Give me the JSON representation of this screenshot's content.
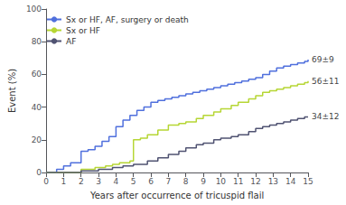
{
  "chart_data": {
    "type": "step",
    "xlabel": "Years after occurrence of tricuspid flail",
    "ylabel": "Event (%)",
    "xlim": [
      0,
      15
    ],
    "ylim": [
      0,
      100
    ],
    "xticks": [
      0,
      1,
      2,
      3,
      4,
      5,
      6,
      7,
      8,
      9,
      10,
      11,
      12,
      13,
      14,
      15
    ],
    "yticks": [
      0,
      20,
      40,
      60,
      80,
      100
    ],
    "grid": false,
    "legend": "upper left",
    "series": [
      {
        "name": "Sx or HF, AF, surgery or death",
        "x": [
          0,
          0.6,
          1.0,
          1.4,
          2.0,
          2.4,
          2.8,
          3.2,
          3.6,
          4.0,
          4.4,
          4.8,
          5.2,
          5.6,
          6.0,
          6.4,
          6.8,
          7.2,
          7.6,
          8.0,
          8.4,
          8.8,
          9.2,
          9.6,
          10.0,
          10.4,
          10.8,
          11.2,
          11.6,
          12.0,
          12.4,
          12.8,
          13.2,
          13.6,
          14.0,
          14.4,
          14.8,
          15.0
        ],
        "values": [
          0,
          2,
          4,
          6,
          13,
          14,
          16,
          19,
          22,
          28,
          32,
          35,
          38,
          40,
          43,
          44,
          45,
          46,
          47,
          48,
          49,
          50,
          51,
          52,
          53,
          54,
          55,
          56,
          57,
          58,
          60,
          62,
          64,
          65,
          66,
          67,
          68,
          69
        ]
      },
      {
        "name": "Sx or HF",
        "x": [
          0,
          1.0,
          2.0,
          2.8,
          3.4,
          3.8,
          4.2,
          4.8,
          5.0,
          5.4,
          5.8,
          6.4,
          7.0,
          7.6,
          8.0,
          8.6,
          9.0,
          9.6,
          10.0,
          10.6,
          11.0,
          11.6,
          12.0,
          12.4,
          12.8,
          13.2,
          13.6,
          14.0,
          14.4,
          14.8,
          15.0
        ],
        "values": [
          0,
          0,
          2,
          3,
          4,
          5,
          6,
          7,
          20,
          21,
          23,
          26,
          29,
          30,
          31,
          33,
          35,
          37,
          39,
          41,
          43,
          45,
          47,
          49,
          50,
          51,
          52,
          53,
          54,
          55,
          56
        ]
      },
      {
        "name": "AF",
        "x": [
          0,
          1.0,
          2.0,
          3.0,
          3.8,
          4.4,
          5.0,
          5.8,
          6.4,
          7.0,
          7.6,
          8.0,
          8.6,
          9.0,
          9.6,
          10.0,
          10.6,
          11.0,
          11.6,
          12.0,
          12.4,
          12.8,
          13.2,
          13.6,
          14.0,
          14.4,
          14.8,
          15.0
        ],
        "values": [
          0,
          0,
          1,
          2,
          3,
          4,
          5,
          7,
          9,
          11,
          13,
          15,
          17,
          18,
          20,
          21,
          22,
          23,
          25,
          27,
          28,
          29,
          30,
          31,
          32,
          33,
          34,
          34
        ]
      }
    ],
    "annotations": [
      {
        "text": "69±9",
        "y": 69
      },
      {
        "text": "56±11",
        "y": 56
      },
      {
        "text": "34±12",
        "y": 34
      }
    ]
  }
}
